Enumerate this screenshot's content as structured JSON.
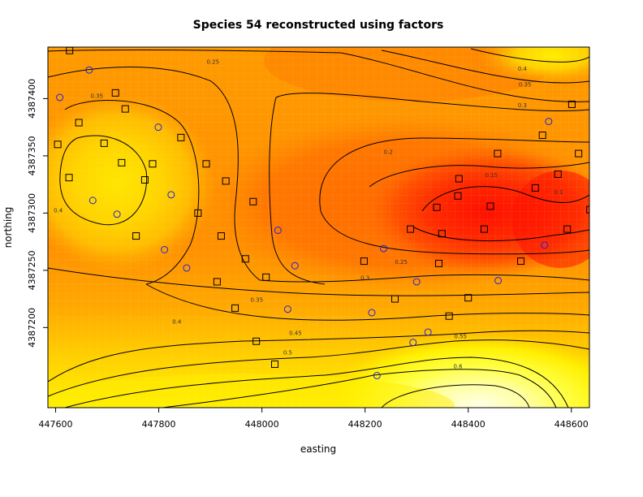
{
  "chart_data": {
    "type": "heatmap",
    "title": "Species 54 reconstructed using factors",
    "xlabel": "easting",
    "ylabel": "northing",
    "xlim": [
      447585,
      448635
    ],
    "ylim": [
      4387130,
      4387445
    ],
    "x_ticks": [
      447600,
      447800,
      448000,
      448200,
      448400,
      448600
    ],
    "y_ticks": [
      4387200,
      4387250,
      4387300,
      4387350,
      4387400
    ],
    "x_tick_labels": [
      "447600",
      "447800",
      "448000",
      "448200",
      "448400",
      "448600"
    ],
    "y_tick_labels": [
      "4387200",
      "4387250",
      "4387300",
      "4387350",
      "4387400"
    ],
    "color_scale": [
      "#ff0000",
      "#ff4a00",
      "#ff8000",
      "#ffb000",
      "#ffd800",
      "#fff200",
      "#ffff40",
      "#ffffa0",
      "#ffffe8"
    ],
    "value_range": [
      0.15,
      0.65
    ],
    "contour_levels": [
      0.2,
      0.25,
      0.3,
      0.35,
      0.4,
      0.45,
      0.5,
      0.55,
      0.6
    ],
    "contour_labels": [
      {
        "text": "0.25",
        "x": 447905,
        "y": 4387432
      },
      {
        "text": "0.4",
        "x": 448505,
        "y": 4387426
      },
      {
        "text": "0.35",
        "x": 448510,
        "y": 4387412
      },
      {
        "text": "0.35",
        "x": 447680,
        "y": 4387402
      },
      {
        "text": "0.3",
        "x": 448505,
        "y": 4387394
      },
      {
        "text": "0.2",
        "x": 448245,
        "y": 4387353
      },
      {
        "text": "0.15",
        "x": 448445,
        "y": 4387333
      },
      {
        "text": "0.1",
        "x": 448575,
        "y": 4387318
      },
      {
        "text": "0.4",
        "x": 447605,
        "y": 4387302
      },
      {
        "text": "0.25",
        "x": 448270,
        "y": 4387257
      },
      {
        "text": "0.3",
        "x": 448200,
        "y": 4387243
      },
      {
        "text": "0.35",
        "x": 447990,
        "y": 4387224
      },
      {
        "text": "0.4",
        "x": 447835,
        "y": 4387205
      },
      {
        "text": "0.45",
        "x": 448065,
        "y": 4387195
      },
      {
        "text": "0.5",
        "x": 448050,
        "y": 4387178
      },
      {
        "text": "0.55",
        "x": 448385,
        "y": 4387192
      },
      {
        "text": "0.6",
        "x": 448380,
        "y": 4387166
      }
    ],
    "square_points": [
      {
        "x": 447627,
        "y": 4387442
      },
      {
        "x": 447716,
        "y": 4387405
      },
      {
        "x": 447735,
        "y": 4387391
      },
      {
        "x": 447645,
        "y": 4387379
      },
      {
        "x": 447843,
        "y": 4387366
      },
      {
        "x": 447604,
        "y": 4387360
      },
      {
        "x": 447694,
        "y": 4387361
      },
      {
        "x": 447728,
        "y": 4387344
      },
      {
        "x": 447788,
        "y": 4387343
      },
      {
        "x": 447626,
        "y": 4387331
      },
      {
        "x": 447892,
        "y": 4387343
      },
      {
        "x": 447773,
        "y": 4387329
      },
      {
        "x": 447930,
        "y": 4387328
      },
      {
        "x": 447983,
        "y": 4387310
      },
      {
        "x": 447876,
        "y": 4387300
      },
      {
        "x": 447756,
        "y": 4387280
      },
      {
        "x": 447921,
        "y": 4387280
      },
      {
        "x": 447968,
        "y": 4387260
      },
      {
        "x": 448008,
        "y": 4387244
      },
      {
        "x": 448198,
        "y": 4387258
      },
      {
        "x": 447913,
        "y": 4387240
      },
      {
        "x": 447948,
        "y": 4387217
      },
      {
        "x": 448258,
        "y": 4387225
      },
      {
        "x": 448343,
        "y": 4387256
      },
      {
        "x": 448363,
        "y": 4387210
      },
      {
        "x": 448400,
        "y": 4387226
      },
      {
        "x": 447989,
        "y": 4387188
      },
      {
        "x": 448025,
        "y": 4387168
      },
      {
        "x": 448288,
        "y": 4387286
      },
      {
        "x": 448339,
        "y": 4387305
      },
      {
        "x": 448349,
        "y": 4387282
      },
      {
        "x": 448380,
        "y": 4387315
      },
      {
        "x": 448382,
        "y": 4387330
      },
      {
        "x": 448431,
        "y": 4387286
      },
      {
        "x": 448443,
        "y": 4387306
      },
      {
        "x": 448457,
        "y": 4387352
      },
      {
        "x": 448502,
        "y": 4387258
      },
      {
        "x": 448530,
        "y": 4387322
      },
      {
        "x": 448544,
        "y": 4387368
      },
      {
        "x": 448574,
        "y": 4387334
      },
      {
        "x": 448592,
        "y": 4387286
      },
      {
        "x": 448601,
        "y": 4387395
      },
      {
        "x": 448614,
        "y": 4387352
      },
      {
        "x": 448636,
        "y": 4387303
      }
    ],
    "circle_points": [
      {
        "x": 447608,
        "y": 4387401
      },
      {
        "x": 447665,
        "y": 4387425
      },
      {
        "x": 447799,
        "y": 4387375
      },
      {
        "x": 447672,
        "y": 4387311
      },
      {
        "x": 447719,
        "y": 4387299
      },
      {
        "x": 447824,
        "y": 4387316
      },
      {
        "x": 447811,
        "y": 4387268
      },
      {
        "x": 447854,
        "y": 4387252
      },
      {
        "x": 448031,
        "y": 4387285
      },
      {
        "x": 448064,
        "y": 4387254
      },
      {
        "x": 448050,
        "y": 4387216
      },
      {
        "x": 448213,
        "y": 4387213
      },
      {
        "x": 448236,
        "y": 4387269
      },
      {
        "x": 448300,
        "y": 4387240
      },
      {
        "x": 448293,
        "y": 4387187
      },
      {
        "x": 448322,
        "y": 4387196
      },
      {
        "x": 448223,
        "y": 4387158
      },
      {
        "x": 448458,
        "y": 4387241
      },
      {
        "x": 448548,
        "y": 4387272
      },
      {
        "x": 448556,
        "y": 4387380
      }
    ]
  }
}
